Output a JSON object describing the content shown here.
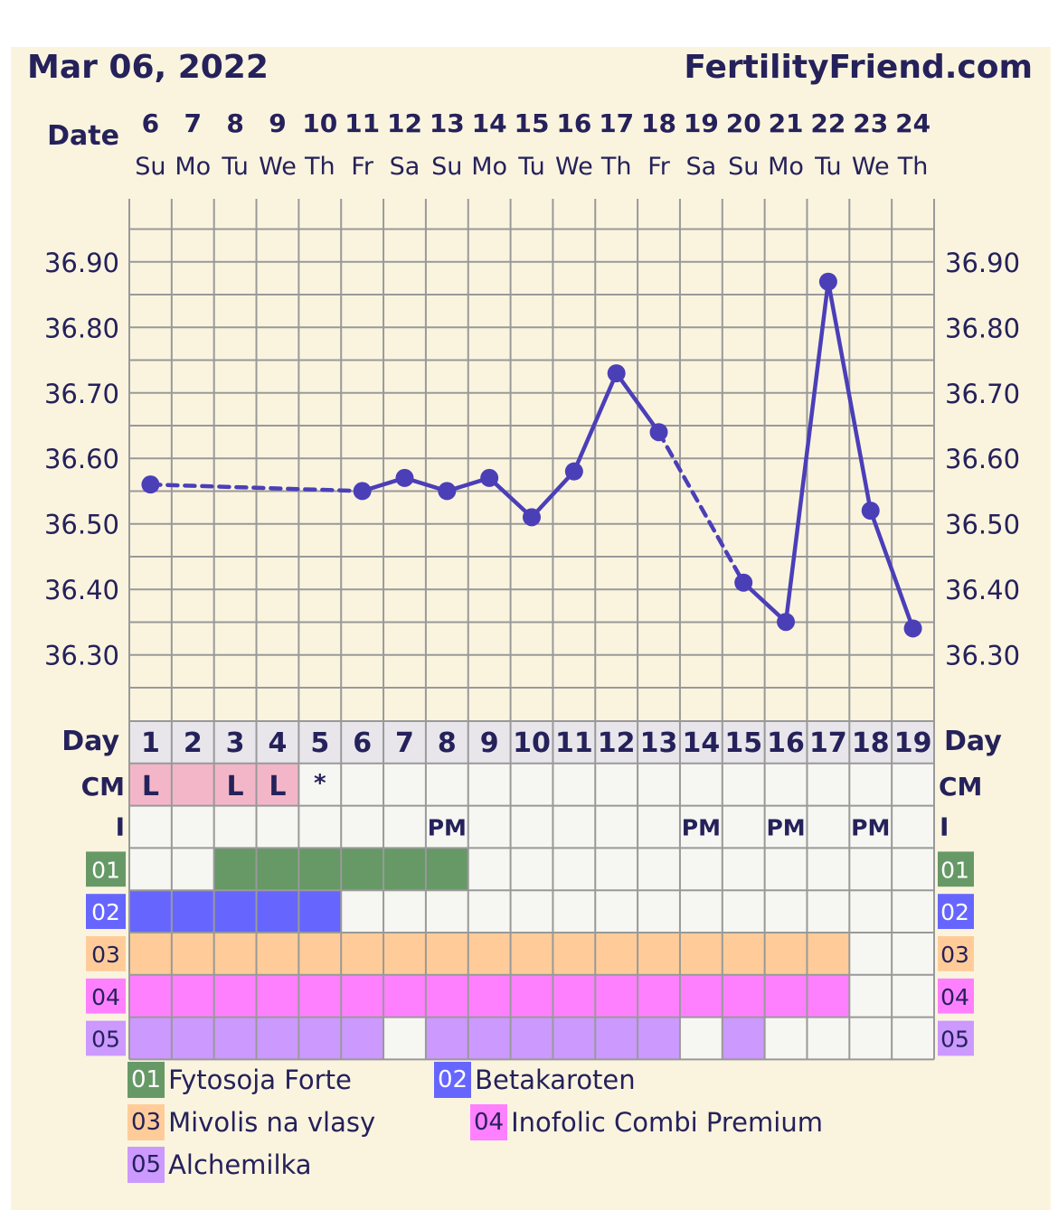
{
  "header": {
    "date": "Mar 06, 2022",
    "site": "FertilityFriend.com"
  },
  "row_labels": {
    "date": "Date",
    "day": "Day",
    "cm": "CM",
    "intercourse": "I"
  },
  "colors": {
    "line": "#4b3fb8",
    "grid": "#999999",
    "text": "#25215a",
    "day_header_bg": "#e8e6ea",
    "cell_bg": "#f6f6f2",
    "cm_l": "#f3b6c8",
    "med01": "#669966",
    "med02": "#6666ff",
    "med03": "#ffcc99",
    "med04": "#ff80ff",
    "med05": "#cc99ff"
  },
  "chart_data": {
    "type": "line",
    "x": [
      "6",
      "7",
      "8",
      "9",
      "10",
      "11",
      "12",
      "13",
      "14",
      "15",
      "16",
      "17",
      "18",
      "19",
      "20",
      "21",
      "22",
      "23",
      "24"
    ],
    "weekdays": [
      "Su",
      "Mo",
      "Tu",
      "We",
      "Th",
      "Fr",
      "Sa",
      "Su",
      "Mo",
      "Tu",
      "We",
      "Th",
      "Fr",
      "Sa",
      "Su",
      "Mo",
      "Tu",
      "We",
      "Th"
    ],
    "cycle_days": [
      "1",
      "2",
      "3",
      "4",
      "5",
      "6",
      "7",
      "8",
      "9",
      "10",
      "11",
      "12",
      "13",
      "14",
      "15",
      "16",
      "17",
      "18",
      "19"
    ],
    "y_ticks": [
      "36.90",
      "36.80",
      "36.70",
      "36.60",
      "36.50",
      "36.40",
      "36.30"
    ],
    "ylim": [
      36.25,
      36.95
    ],
    "series": [
      {
        "values": [
          36.56,
          null,
          null,
          null,
          null,
          36.55,
          36.57,
          36.55,
          36.57,
          36.51,
          36.58,
          36.73,
          36.64,
          null,
          36.41,
          36.35,
          36.87,
          36.52,
          36.34
        ]
      }
    ],
    "cm": [
      "L",
      "L-blank",
      "L",
      "L",
      "*",
      "",
      "",
      "",
      "",
      "",
      "",
      "",
      "",
      "",
      "",
      "",
      "",
      "",
      ""
    ],
    "intercourse": [
      "",
      "",
      "",
      "",
      "",
      "",
      "",
      "PM",
      "",
      "",
      "",
      "",
      "",
      "PM",
      "",
      "PM",
      "",
      "PM",
      ""
    ],
    "medications": [
      {
        "code": "01",
        "name": "Fytosoja Forte",
        "days": [
          3,
          4,
          5,
          6,
          7,
          8
        ]
      },
      {
        "code": "02",
        "name": "Betakaroten",
        "days": [
          1,
          2,
          3,
          4,
          5
        ]
      },
      {
        "code": "03",
        "name": "Mivolis na vlasy",
        "days": [
          1,
          2,
          3,
          4,
          5,
          6,
          7,
          8,
          9,
          10,
          11,
          12,
          13,
          14,
          15,
          16,
          17
        ]
      },
      {
        "code": "04",
        "name": "Inofolic Combi Premium",
        "days": [
          1,
          2,
          3,
          4,
          5,
          6,
          7,
          8,
          9,
          10,
          11,
          12,
          13,
          14,
          15,
          16,
          17
        ]
      },
      {
        "code": "05",
        "name": "Alchemilka",
        "days": [
          1,
          2,
          3,
          4,
          5,
          6,
          8,
          9,
          10,
          11,
          12,
          13,
          15
        ]
      }
    ]
  }
}
